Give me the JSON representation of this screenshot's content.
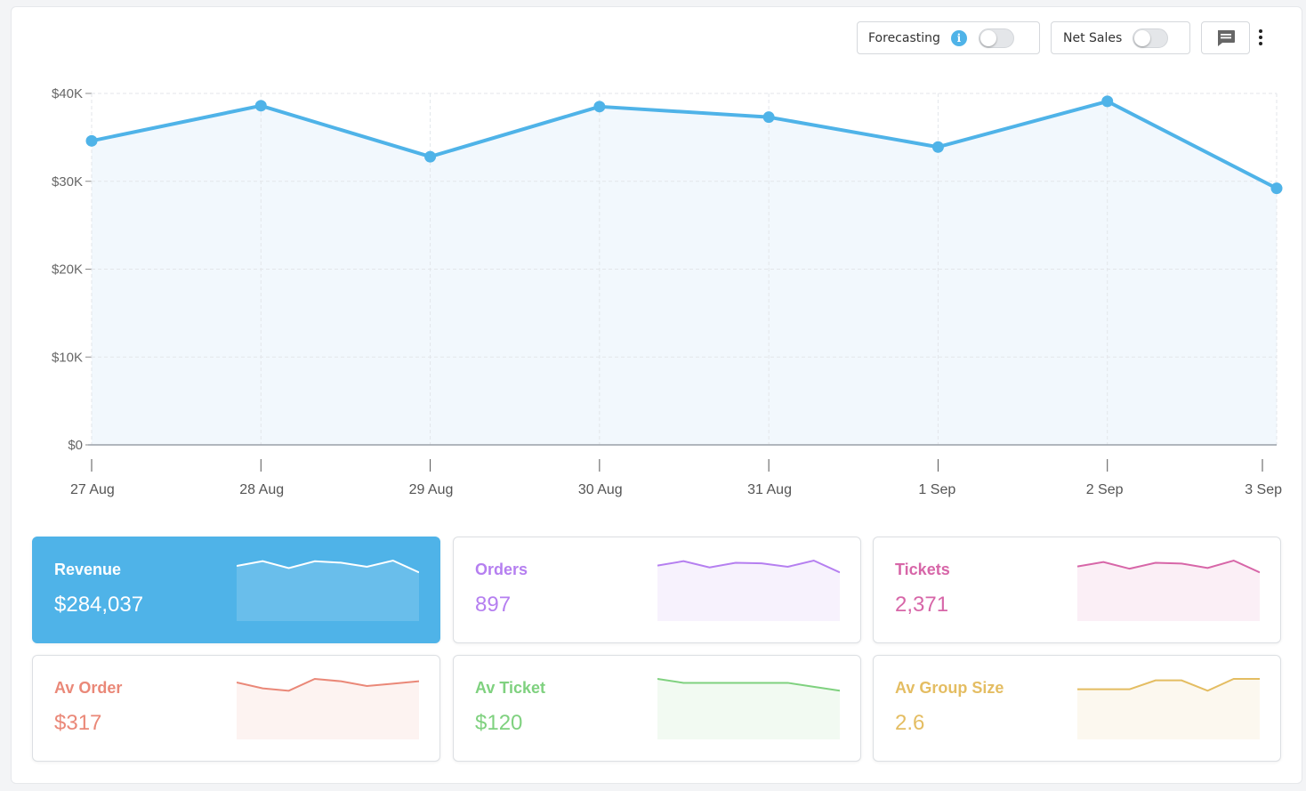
{
  "toolbar": {
    "forecasting_label": "Forecasting",
    "info_glyph": "i",
    "net_sales_label": "Net Sales",
    "forecasting_on": false,
    "net_sales_on": false,
    "comment_icon": "comment-icon",
    "more_icon": "more-vertical-icon"
  },
  "chart_data": {
    "type": "area",
    "categories": [
      "27 Aug",
      "28 Aug",
      "29 Aug",
      "30 Aug",
      "31 Aug",
      "1 Sep",
      "2 Sep",
      "3 Sep"
    ],
    "series": [
      {
        "values": [
          34600,
          38600,
          32800,
          38500,
          37300,
          33900,
          39100,
          29200
        ]
      }
    ],
    "y_ticks": [
      "$0",
      "$10K",
      "$20K",
      "$30K",
      "$40K"
    ],
    "ylim": [
      0,
      40000
    ],
    "grid": true,
    "colors": {
      "line": "#4fb3e8",
      "fill": "#f2f8fd",
      "grid": "#e3e6ea"
    }
  },
  "tiles": [
    {
      "label": "Revenue",
      "value": "$284,037",
      "color": "#4fb3e8",
      "active": true,
      "spark": [
        34600,
        38600,
        32800,
        38500,
        37300,
        33900,
        39100,
        29200
      ]
    },
    {
      "label": "Orders",
      "value": "897",
      "color": "#b57ff0",
      "active": false,
      "spark": [
        110,
        124,
        104,
        119,
        117,
        106,
        126,
        88
      ]
    },
    {
      "label": "Tickets",
      "value": "2,371",
      "color": "#d766a8",
      "active": false,
      "spark": [
        290,
        320,
        275,
        315,
        310,
        280,
        330,
        250
      ]
    },
    {
      "label": "Av Order",
      "value": "$317",
      "color": "#ea8878",
      "active": false,
      "spark": [
        317,
        312,
        310,
        320,
        318,
        314,
        316,
        318
      ]
    },
    {
      "label": "Av Ticket",
      "value": "$120",
      "color": "#7fd17f",
      "active": false,
      "spark": [
        121,
        120,
        120,
        120,
        120,
        120,
        119,
        118
      ]
    },
    {
      "label": "Av Group Size",
      "value": "2.6",
      "color": "#e4bd62",
      "active": false,
      "spark": [
        2.56,
        2.56,
        2.56,
        2.62,
        2.62,
        2.55,
        2.63,
        2.63
      ]
    }
  ]
}
